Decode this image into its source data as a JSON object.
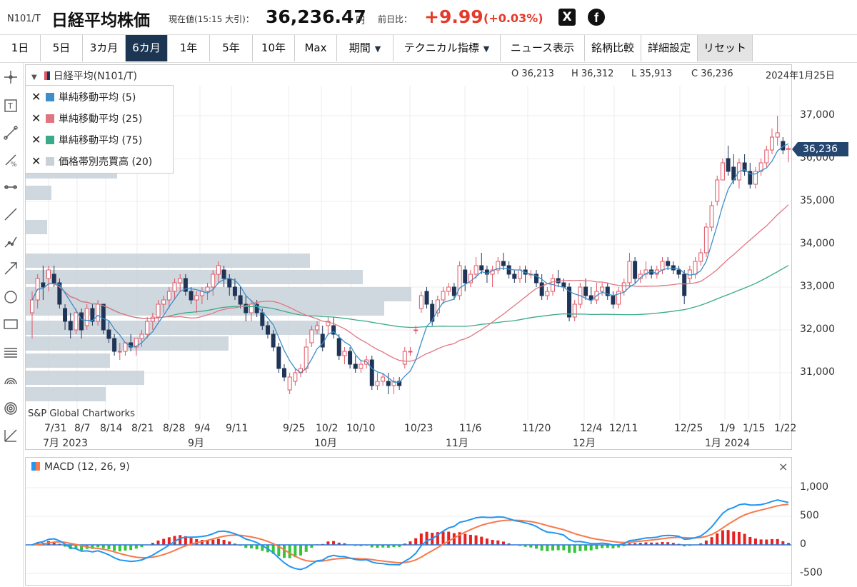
{
  "header": {
    "code": "N101/T",
    "name": "日経平均株価",
    "price_label": "現在値(15:15 大引)：",
    "price": "36,236.47",
    "price_unit": "円",
    "change_label": "前日比：",
    "change": "+9.99",
    "change_pct": "(+0.03%)",
    "x_icon": "X",
    "fb_icon": "f"
  },
  "toolbar": {
    "buttons": [
      "1日",
      "5日",
      "3カ月",
      "6カ月",
      "1年",
      "5年",
      "10年",
      "Max",
      "期間",
      "テクニカル指標",
      "ニュース表示",
      "銘柄比較",
      "詳細設定",
      "リセット"
    ],
    "active": "6カ月"
  },
  "chart_header": {
    "symbol": "日経平均(N101/T)",
    "o": "O 36,213",
    "h": "H 36,312",
    "l": "L 35,913",
    "c": "C 36,236",
    "date": "2024年1月25日"
  },
  "legend": [
    {
      "label": "単純移動平均 (5)",
      "color": "#3d8fc9"
    },
    {
      "label": "単純移動平均 (25)",
      "color": "#e07580"
    },
    {
      "label": "単純移動平均 (75)",
      "color": "#3aaa8a"
    },
    {
      "label": "価格帯別売買高 (20)",
      "color": "#c8d1d9"
    }
  ],
  "watermark": "S&P Global Chartworks",
  "price_tag": "36,236",
  "colors": {
    "up": "#e05563",
    "down": "#1f3557",
    "sma5": "#3d8fc9",
    "sma25": "#e07580",
    "sma75": "#3aaa8a",
    "macd": "#2196f3",
    "signal": "#f7794b",
    "hist_up": "#e82020",
    "hist_down": "#35c43a",
    "volume_profile": "#c8d1d9"
  },
  "chart_data": [
    {
      "type": "candlestick",
      "title": "日経平均(N101/T)",
      "y_axis_labels": [
        "37,000",
        "36,000",
        "35,000",
        "34,000",
        "33,000",
        "32,000",
        "31,000"
      ],
      "y_ticks": [
        37000,
        36000,
        35000,
        34000,
        33000,
        32000,
        31000
      ],
      "x_labels": [
        "7/31",
        "8/7",
        "8/14",
        "8/21",
        "8/28",
        "9/4",
        "9/11",
        "9/25",
        "10/2",
        "10/10",
        "10/23",
        "11/6",
        "11/20",
        "12/4",
        "12/11",
        "12/25",
        "1/9",
        "1/15",
        "1/22"
      ],
      "month_labels": [
        "7月 2023",
        "9月",
        "10月",
        "11月",
        "12月",
        "1月 2024"
      ],
      "series": [
        {
          "name": "日経平均",
          "ohlc": [
            [
              32400,
              32900,
              31800,
              32700
            ],
            [
              32700,
              33300,
              32500,
              33200
            ],
            [
              33100,
              33500,
              32700,
              33000
            ],
            [
              33200,
              33500,
              32900,
              33400
            ],
            [
              33300,
              33500,
              33000,
              33100
            ],
            [
              33100,
              33200,
              32500,
              32600
            ],
            [
              32500,
              32600,
              32000,
              32200
            ],
            [
              32200,
              32400,
              31800,
              32000
            ],
            [
              32000,
              32500,
              31900,
              32400
            ],
            [
              32400,
              32500,
              31800,
              32000
            ],
            [
              32100,
              32600,
              32000,
              32500
            ],
            [
              32500,
              32600,
              32100,
              32200
            ],
            [
              32200,
              32700,
              32100,
              32600
            ],
            [
              32600,
              32600,
              31900,
              32000
            ],
            [
              32000,
              32200,
              31700,
              31800
            ],
            [
              31800,
              31900,
              31400,
              31500
            ],
            [
              31500,
              31700,
              31300,
              31500
            ],
            [
              31500,
              31700,
              31400,
              31700
            ],
            [
              31700,
              31900,
              31500,
              31600
            ],
            [
              31600,
              31800,
              31400,
              31800
            ],
            [
              31800,
              32000,
              31600,
              31900
            ],
            [
              31900,
              32300,
              31800,
              32200
            ],
            [
              32200,
              32400,
              32000,
              32300
            ],
            [
              32300,
              32700,
              32200,
              32600
            ],
            [
              32600,
              32800,
              32400,
              32700
            ],
            [
              32700,
              33000,
              32500,
              32900
            ],
            [
              32900,
              33200,
              32700,
              33100
            ],
            [
              33100,
              33300,
              32900,
              33200
            ],
            [
              33200,
              33300,
              32800,
              32900
            ],
            [
              32900,
              33000,
              32600,
              32700
            ],
            [
              32700,
              32900,
              32400,
              32800
            ],
            [
              32800,
              33000,
              32600,
              32900
            ],
            [
              32900,
              33100,
              32700,
              33000
            ],
            [
              33000,
              33400,
              32800,
              33300
            ],
            [
              33300,
              33600,
              33100,
              33500
            ],
            [
              33400,
              33500,
              33000,
              33200
            ],
            [
              33200,
              33300,
              32800,
              33000
            ],
            [
              33000,
              33200,
              32700,
              32800
            ],
            [
              32800,
              33000,
              32500,
              32600
            ],
            [
              32600,
              32800,
              32200,
              32400
            ],
            [
              32400,
              32700,
              32200,
              32600
            ],
            [
              32600,
              32700,
              32300,
              32400
            ],
            [
              32400,
              32500,
              32000,
              32100
            ],
            [
              32100,
              32200,
              31800,
              31900
            ],
            [
              31900,
              32000,
              31500,
              31600
            ],
            [
              31600,
              31700,
              31000,
              31100
            ],
            [
              31100,
              31200,
              30800,
              30900
            ],
            [
              30600,
              31000,
              30500,
              30900
            ],
            [
              30800,
              31100,
              30700,
              31000
            ],
            [
              31000,
              31200,
              30900,
              31100
            ],
            [
              31100,
              31800,
              31000,
              31600
            ],
            [
              31700,
              32100,
              31600,
              32000
            ],
            [
              32000,
              32200,
              31900,
              32100
            ],
            [
              31900,
              32100,
              31500,
              31600
            ],
            [
              32100,
              32300,
              31900,
              32200
            ],
            [
              32100,
              32300,
              31800,
              31900
            ],
            [
              31800,
              31900,
              31300,
              31400
            ],
            [
              31400,
              31600,
              31200,
              31500
            ],
            [
              31500,
              31600,
              31100,
              31200
            ],
            [
              31200,
              31400,
              31000,
              31100
            ],
            [
              31100,
              31300,
              31000,
              31200
            ],
            [
              31200,
              31400,
              31100,
              31300
            ],
            [
              31300,
              31400,
              30600,
              30700
            ],
            [
              30700,
              31000,
              30600,
              30800
            ],
            [
              30800,
              31000,
              30700,
              30900
            ],
            [
              30800,
              31000,
              30500,
              30700
            ],
            [
              30700,
              30900,
              30500,
              30800
            ],
            [
              30800,
              30900,
              30600,
              30700
            ],
            [
              31200,
              31600,
              31100,
              31500
            ],
            [
              31500,
              31600,
              31400,
              31500
            ],
            [
              32000,
              32100,
              31900,
              32000
            ],
            [
              32500,
              32900,
              32400,
              32800
            ],
            [
              32900,
              33000,
              32500,
              32600
            ],
            [
              32600,
              32700,
              32100,
              32200
            ],
            [
              32400,
              32800,
              32300,
              32700
            ],
            [
              32700,
              33000,
              32600,
              32900
            ],
            [
              32900,
              33100,
              32800,
              33000
            ],
            [
              33000,
              33100,
              32700,
              32800
            ],
            [
              32800,
              33600,
              32700,
              33500
            ],
            [
              33400,
              33500,
              32900,
              33100
            ],
            [
              33100,
              33400,
              33000,
              33300
            ],
            [
              33300,
              33700,
              33200,
              33500
            ],
            [
              33500,
              33800,
              33300,
              33400
            ],
            [
              33400,
              33500,
              33100,
              33300
            ],
            [
              33300,
              33500,
              33000,
              33400
            ],
            [
              33400,
              33700,
              33300,
              33600
            ],
            [
              33600,
              33800,
              33400,
              33500
            ],
            [
              33500,
              33600,
              33200,
              33300
            ],
            [
              33300,
              33400,
              33100,
              33200
            ],
            [
              33200,
              33500,
              33100,
              33400
            ],
            [
              33400,
              33500,
              33100,
              33300
            ],
            [
              33300,
              33400,
              33200,
              33300
            ],
            [
              33300,
              33400,
              33000,
              33100
            ],
            [
              33100,
              33300,
              32700,
              32800
            ],
            [
              32800,
              33000,
              32700,
              32900
            ],
            [
              32900,
              33300,
              32800,
              33200
            ],
            [
              33200,
              33400,
              33000,
              33100
            ],
            [
              33100,
              33200,
              32900,
              33000
            ],
            [
              33000,
              33100,
              32200,
              32300
            ],
            [
              32300,
              32700,
              32200,
              32600
            ],
            [
              32600,
              33100,
              32500,
              33000
            ],
            [
              33000,
              33200,
              32700,
              32800
            ],
            [
              32800,
              33000,
              32600,
              32700
            ],
            [
              32700,
              33100,
              32600,
              32900
            ],
            [
              32900,
              33100,
              32800,
              33000
            ],
            [
              33000,
              33100,
              32700,
              32800
            ],
            [
              32800,
              32900,
              32500,
              32600
            ],
            [
              32600,
              33000,
              32500,
              32900
            ],
            [
              32900,
              33200,
              32800,
              33100
            ],
            [
              33100,
              33800,
              33000,
              33600
            ],
            [
              33600,
              33700,
              33100,
              33200
            ],
            [
              33200,
              33400,
              33100,
              33300
            ],
            [
              33300,
              33600,
              33200,
              33400
            ],
            [
              33400,
              33500,
              33200,
              33300
            ],
            [
              33300,
              33500,
              33200,
              33400
            ],
            [
              33400,
              33700,
              33300,
              33600
            ],
            [
              33600,
              33700,
              33400,
              33500
            ],
            [
              33500,
              33600,
              33300,
              33400
            ],
            [
              33400,
              33500,
              33200,
              33300
            ],
            [
              33300,
              33400,
              32600,
              32800
            ],
            [
              33200,
              33500,
              33100,
              33400
            ],
            [
              33300,
              33700,
              33200,
              33600
            ],
            [
              33600,
              33900,
              33500,
              33800
            ],
            [
              33800,
              34500,
              33700,
              34400
            ],
            [
              34400,
              35000,
              34300,
              34900
            ],
            [
              35000,
              35600,
              34900,
              35500
            ],
            [
              35500,
              36000,
              35500,
              35900
            ],
            [
              36000,
              36300,
              35600,
              35700
            ],
            [
              35800,
              36100,
              35400,
              35500
            ],
            [
              35500,
              36000,
              35300,
              35900
            ],
            [
              35900,
              36100,
              35600,
              35700
            ],
            [
              35700,
              35900,
              35300,
              35400
            ],
            [
              35400,
              35800,
              35300,
              35700
            ],
            [
              35700,
              36000,
              35600,
              35900
            ],
            [
              35900,
              36300,
              35800,
              36200
            ],
            [
              36200,
              36700,
              36100,
              36500
            ],
            [
              36500,
              37000,
              36300,
              36600
            ],
            [
              36400,
              36500,
              36100,
              36200
            ],
            [
              36213,
              36312,
              35913,
              36236
            ]
          ]
        },
        {
          "name": "単純移動平均 (5)"
        },
        {
          "name": "単純移動平均 (25)"
        },
        {
          "name": "単純移動平均 (75)"
        }
      ]
    },
    {
      "type": "line",
      "title": "MACD (12, 26, 9)",
      "y_axis_labels": [
        "1,000",
        "500",
        "0",
        "-500"
      ],
      "y_ticks": [
        1000,
        500,
        0,
        -500
      ]
    }
  ],
  "macd_title": "MACD (12, 26, 9)",
  "close_icon": "×"
}
